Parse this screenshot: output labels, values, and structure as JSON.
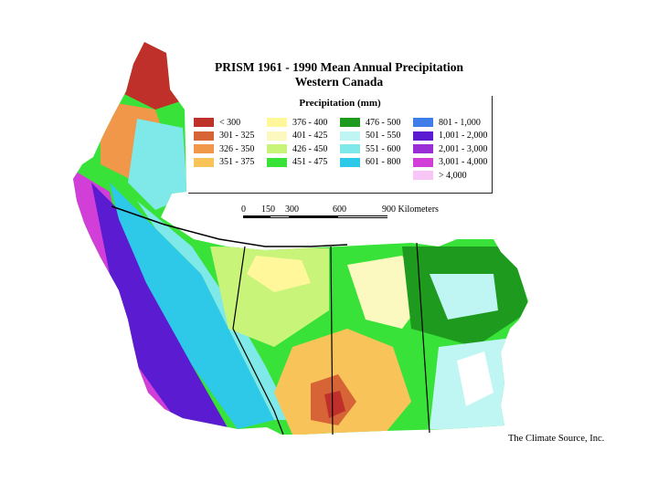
{
  "title": {
    "line1": "PRISM 1961 - 1990 Mean Annual Precipitation",
    "line2": "Western Canada"
  },
  "legend": {
    "title": "Precipitation (mm)",
    "items": [
      {
        "label": "< 300",
        "color": "#c0302a"
      },
      {
        "label": "376 - 400",
        "color": "#fff79a"
      },
      {
        "label": "476 - 500",
        "color": "#1e9b1e"
      },
      {
        "label": "801 - 1,000",
        "color": "#3f7de8"
      },
      {
        "label": "301 - 325",
        "color": "#d66436"
      },
      {
        "label": "401 - 425",
        "color": "#fbf8c0"
      },
      {
        "label": "501 - 550",
        "color": "#bff5f2"
      },
      {
        "label": "1,001 - 2,000",
        "color": "#5b1bd0"
      },
      {
        "label": "326 - 350",
        "color": "#f0974a"
      },
      {
        "label": "426 - 450",
        "color": "#c8f47a"
      },
      {
        "label": "551 - 600",
        "color": "#7fe8e8"
      },
      {
        "label": "2,001 - 3,000",
        "color": "#9a2ed6"
      },
      {
        "label": "351 - 375",
        "color": "#f8c45a"
      },
      {
        "label": "451 - 475",
        "color": "#38e238"
      },
      {
        "label": "601 - 800",
        "color": "#2ec8e8"
      },
      {
        "label": "3,001 - 4,000",
        "color": "#d23fd8"
      },
      {
        "label": "",
        "color": ""
      },
      {
        "label": "",
        "color": ""
      },
      {
        "label": "",
        "color": ""
      },
      {
        "label": "> 4,000",
        "color": "#f7c6f7"
      }
    ]
  },
  "scale": {
    "ticks": [
      "0",
      "150",
      "300",
      "600",
      "900 Kilometers"
    ]
  },
  "credit": "The Climate Source, Inc."
}
